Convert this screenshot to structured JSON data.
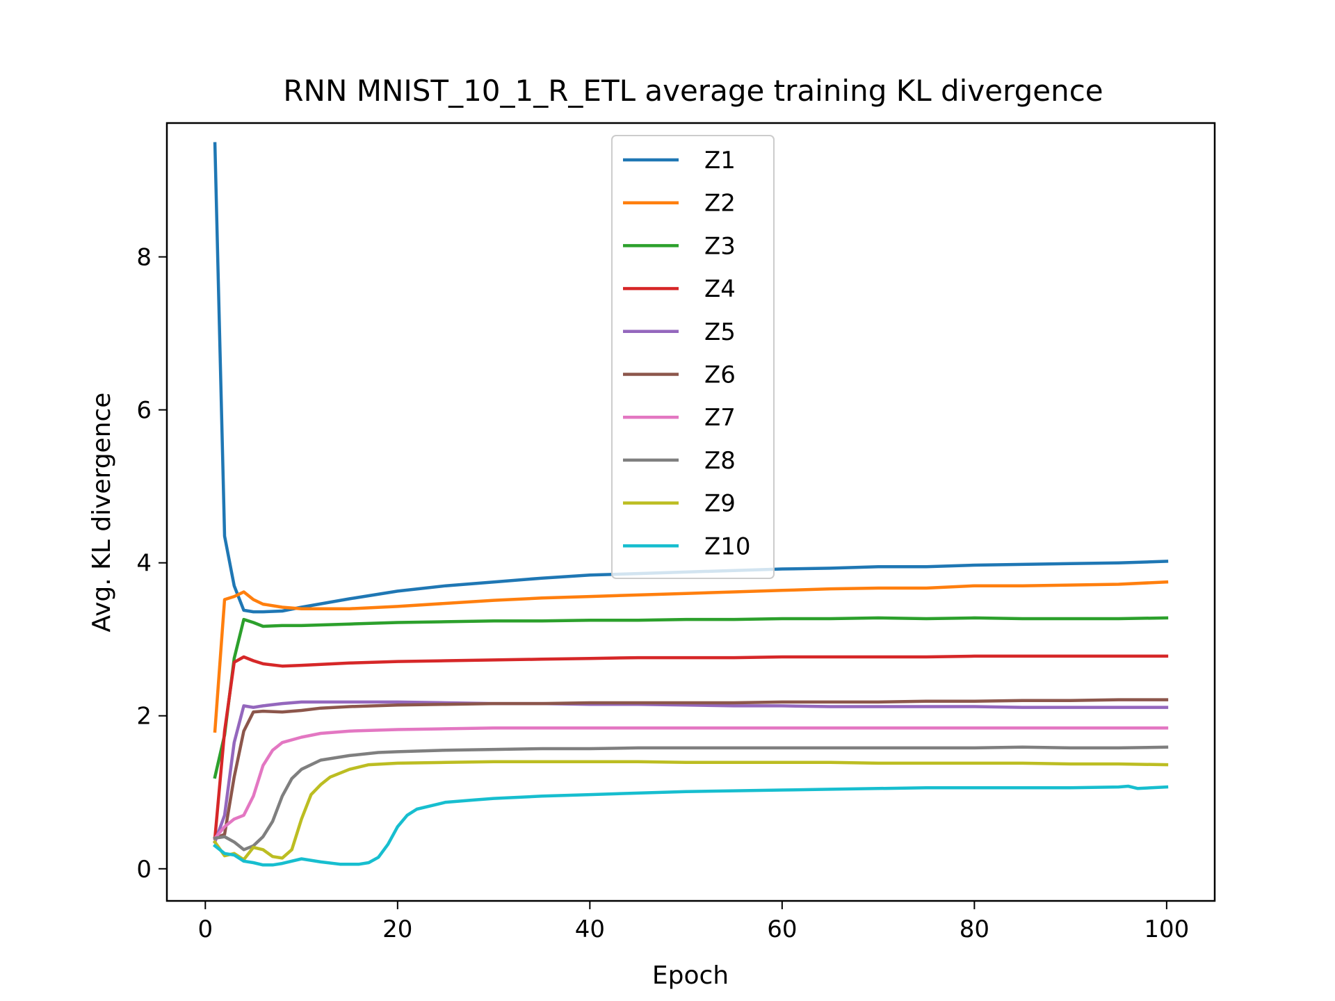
{
  "chart_data": {
    "type": "line",
    "title": "RNN MNIST_10_1_R_ETL average training KL divergence",
    "xlabel": "Epoch",
    "ylabel": "Avg. KL divergence",
    "xlim": [
      -4,
      105
    ],
    "ylim": [
      -0.42,
      9.75
    ],
    "xticks": [
      0,
      20,
      40,
      60,
      80,
      100
    ],
    "yticks": [
      0,
      2,
      4,
      6,
      8
    ],
    "grid": false,
    "legend_position": "upper center",
    "series": [
      {
        "name": "Z1",
        "color": "#1f77b4",
        "points": [
          [
            1,
            9.48
          ],
          [
            2,
            4.35
          ],
          [
            3,
            3.7
          ],
          [
            4,
            3.38
          ],
          [
            5,
            3.36
          ],
          [
            6,
            3.36
          ],
          [
            8,
            3.37
          ],
          [
            10,
            3.42
          ],
          [
            15,
            3.53
          ],
          [
            20,
            3.63
          ],
          [
            25,
            3.7
          ],
          [
            30,
            3.75
          ],
          [
            35,
            3.8
          ],
          [
            40,
            3.84
          ],
          [
            45,
            3.86
          ],
          [
            50,
            3.88
          ],
          [
            55,
            3.9
          ],
          [
            60,
            3.92
          ],
          [
            65,
            3.93
          ],
          [
            70,
            3.95
          ],
          [
            75,
            3.95
          ],
          [
            80,
            3.97
          ],
          [
            85,
            3.98
          ],
          [
            90,
            3.99
          ],
          [
            95,
            4.0
          ],
          [
            100,
            4.02
          ]
        ]
      },
      {
        "name": "Z2",
        "color": "#ff7f0e",
        "points": [
          [
            1,
            1.8
          ],
          [
            2,
            3.52
          ],
          [
            3,
            3.56
          ],
          [
            4,
            3.62
          ],
          [
            5,
            3.52
          ],
          [
            6,
            3.46
          ],
          [
            8,
            3.42
          ],
          [
            10,
            3.4
          ],
          [
            15,
            3.4
          ],
          [
            20,
            3.43
          ],
          [
            25,
            3.47
          ],
          [
            30,
            3.51
          ],
          [
            35,
            3.54
          ],
          [
            40,
            3.56
          ],
          [
            45,
            3.58
          ],
          [
            50,
            3.6
          ],
          [
            55,
            3.62
          ],
          [
            60,
            3.64
          ],
          [
            65,
            3.66
          ],
          [
            70,
            3.67
          ],
          [
            75,
            3.67
          ],
          [
            80,
            3.7
          ],
          [
            85,
            3.7
          ],
          [
            90,
            3.71
          ],
          [
            95,
            3.72
          ],
          [
            100,
            3.75
          ]
        ]
      },
      {
        "name": "Z3",
        "color": "#2ca02c",
        "points": [
          [
            1,
            1.2
          ],
          [
            2,
            1.75
          ],
          [
            3,
            2.75
          ],
          [
            4,
            3.26
          ],
          [
            5,
            3.22
          ],
          [
            6,
            3.17
          ],
          [
            8,
            3.18
          ],
          [
            10,
            3.18
          ],
          [
            15,
            3.2
          ],
          [
            20,
            3.22
          ],
          [
            25,
            3.23
          ],
          [
            30,
            3.24
          ],
          [
            35,
            3.24
          ],
          [
            40,
            3.25
          ],
          [
            45,
            3.25
          ],
          [
            50,
            3.26
          ],
          [
            55,
            3.26
          ],
          [
            60,
            3.27
          ],
          [
            65,
            3.27
          ],
          [
            70,
            3.28
          ],
          [
            75,
            3.27
          ],
          [
            80,
            3.28
          ],
          [
            85,
            3.27
          ],
          [
            90,
            3.27
          ],
          [
            95,
            3.27
          ],
          [
            100,
            3.28
          ]
        ]
      },
      {
        "name": "Z4",
        "color": "#d62728",
        "points": [
          [
            1,
            0.4
          ],
          [
            2,
            1.8
          ],
          [
            3,
            2.7
          ],
          [
            4,
            2.77
          ],
          [
            5,
            2.72
          ],
          [
            6,
            2.68
          ],
          [
            8,
            2.65
          ],
          [
            10,
            2.66
          ],
          [
            15,
            2.69
          ],
          [
            20,
            2.71
          ],
          [
            25,
            2.72
          ],
          [
            30,
            2.73
          ],
          [
            35,
            2.74
          ],
          [
            40,
            2.75
          ],
          [
            45,
            2.76
          ],
          [
            50,
            2.76
          ],
          [
            55,
            2.76
          ],
          [
            60,
            2.77
          ],
          [
            65,
            2.77
          ],
          [
            70,
            2.77
          ],
          [
            75,
            2.77
          ],
          [
            80,
            2.78
          ],
          [
            85,
            2.78
          ],
          [
            90,
            2.78
          ],
          [
            95,
            2.78
          ],
          [
            100,
            2.78
          ]
        ]
      },
      {
        "name": "Z5",
        "color": "#9467bd",
        "points": [
          [
            1,
            0.35
          ],
          [
            2,
            0.7
          ],
          [
            3,
            1.65
          ],
          [
            4,
            2.13
          ],
          [
            5,
            2.11
          ],
          [
            6,
            2.13
          ],
          [
            8,
            2.16
          ],
          [
            10,
            2.18
          ],
          [
            15,
            2.18
          ],
          [
            20,
            2.18
          ],
          [
            25,
            2.17
          ],
          [
            30,
            2.16
          ],
          [
            35,
            2.16
          ],
          [
            40,
            2.15
          ],
          [
            45,
            2.15
          ],
          [
            50,
            2.14
          ],
          [
            55,
            2.13
          ],
          [
            60,
            2.13
          ],
          [
            65,
            2.12
          ],
          [
            70,
            2.12
          ],
          [
            75,
            2.12
          ],
          [
            80,
            2.12
          ],
          [
            85,
            2.11
          ],
          [
            90,
            2.11
          ],
          [
            95,
            2.11
          ],
          [
            100,
            2.11
          ]
        ]
      },
      {
        "name": "Z6",
        "color": "#8c564b",
        "points": [
          [
            1,
            0.4
          ],
          [
            2,
            0.45
          ],
          [
            3,
            1.2
          ],
          [
            4,
            1.8
          ],
          [
            5,
            2.05
          ],
          [
            6,
            2.06
          ],
          [
            8,
            2.05
          ],
          [
            10,
            2.07
          ],
          [
            12,
            2.1
          ],
          [
            15,
            2.12
          ],
          [
            20,
            2.14
          ],
          [
            25,
            2.15
          ],
          [
            30,
            2.16
          ],
          [
            35,
            2.16
          ],
          [
            40,
            2.17
          ],
          [
            45,
            2.17
          ],
          [
            50,
            2.17
          ],
          [
            55,
            2.17
          ],
          [
            60,
            2.18
          ],
          [
            65,
            2.18
          ],
          [
            70,
            2.18
          ],
          [
            75,
            2.19
          ],
          [
            80,
            2.19
          ],
          [
            85,
            2.2
          ],
          [
            90,
            2.2
          ],
          [
            95,
            2.21
          ],
          [
            100,
            2.21
          ]
        ]
      },
      {
        "name": "Z7",
        "color": "#e377c2",
        "points": [
          [
            1,
            0.4
          ],
          [
            2,
            0.55
          ],
          [
            3,
            0.65
          ],
          [
            4,
            0.7
          ],
          [
            5,
            0.95
          ],
          [
            6,
            1.35
          ],
          [
            7,
            1.55
          ],
          [
            8,
            1.65
          ],
          [
            10,
            1.72
          ],
          [
            12,
            1.77
          ],
          [
            15,
            1.8
          ],
          [
            20,
            1.82
          ],
          [
            25,
            1.83
          ],
          [
            30,
            1.84
          ],
          [
            35,
            1.84
          ],
          [
            40,
            1.84
          ],
          [
            45,
            1.84
          ],
          [
            50,
            1.84
          ],
          [
            55,
            1.84
          ],
          [
            60,
            1.84
          ],
          [
            65,
            1.84
          ],
          [
            70,
            1.84
          ],
          [
            75,
            1.84
          ],
          [
            80,
            1.84
          ],
          [
            85,
            1.84
          ],
          [
            90,
            1.84
          ],
          [
            95,
            1.84
          ],
          [
            100,
            1.84
          ]
        ]
      },
      {
        "name": "Z8",
        "color": "#7f7f7f",
        "points": [
          [
            1,
            0.4
          ],
          [
            2,
            0.42
          ],
          [
            3,
            0.35
          ],
          [
            4,
            0.25
          ],
          [
            5,
            0.3
          ],
          [
            6,
            0.42
          ],
          [
            7,
            0.62
          ],
          [
            8,
            0.95
          ],
          [
            9,
            1.18
          ],
          [
            10,
            1.3
          ],
          [
            12,
            1.42
          ],
          [
            15,
            1.48
          ],
          [
            18,
            1.52
          ],
          [
            20,
            1.53
          ],
          [
            25,
            1.55
          ],
          [
            30,
            1.56
          ],
          [
            35,
            1.57
          ],
          [
            40,
            1.57
          ],
          [
            45,
            1.58
          ],
          [
            50,
            1.58
          ],
          [
            55,
            1.58
          ],
          [
            60,
            1.58
          ],
          [
            65,
            1.58
          ],
          [
            70,
            1.58
          ],
          [
            75,
            1.58
          ],
          [
            80,
            1.58
          ],
          [
            85,
            1.59
          ],
          [
            90,
            1.58
          ],
          [
            95,
            1.58
          ],
          [
            100,
            1.59
          ]
        ]
      },
      {
        "name": "Z9",
        "color": "#bcbd22",
        "points": [
          [
            1,
            0.35
          ],
          [
            2,
            0.17
          ],
          [
            3,
            0.2
          ],
          [
            4,
            0.12
          ],
          [
            5,
            0.28
          ],
          [
            6,
            0.25
          ],
          [
            7,
            0.16
          ],
          [
            8,
            0.14
          ],
          [
            9,
            0.25
          ],
          [
            10,
            0.65
          ],
          [
            11,
            0.97
          ],
          [
            12,
            1.1
          ],
          [
            13,
            1.2
          ],
          [
            15,
            1.3
          ],
          [
            17,
            1.36
          ],
          [
            20,
            1.38
          ],
          [
            25,
            1.39
          ],
          [
            30,
            1.4
          ],
          [
            35,
            1.4
          ],
          [
            40,
            1.4
          ],
          [
            45,
            1.4
          ],
          [
            50,
            1.39
          ],
          [
            55,
            1.39
          ],
          [
            60,
            1.39
          ],
          [
            65,
            1.39
          ],
          [
            70,
            1.38
          ],
          [
            75,
            1.38
          ],
          [
            80,
            1.38
          ],
          [
            85,
            1.38
          ],
          [
            90,
            1.37
          ],
          [
            95,
            1.37
          ],
          [
            100,
            1.36
          ]
        ]
      },
      {
        "name": "Z10",
        "color": "#17becf",
        "points": [
          [
            1,
            0.3
          ],
          [
            2,
            0.2
          ],
          [
            3,
            0.18
          ],
          [
            4,
            0.1
          ],
          [
            5,
            0.08
          ],
          [
            6,
            0.05
          ],
          [
            7,
            0.05
          ],
          [
            8,
            0.07
          ],
          [
            10,
            0.13
          ],
          [
            12,
            0.09
          ],
          [
            14,
            0.06
          ],
          [
            16,
            0.06
          ],
          [
            17,
            0.08
          ],
          [
            18,
            0.15
          ],
          [
            19,
            0.32
          ],
          [
            20,
            0.55
          ],
          [
            21,
            0.7
          ],
          [
            22,
            0.78
          ],
          [
            25,
            0.87
          ],
          [
            28,
            0.9
          ],
          [
            30,
            0.92
          ],
          [
            35,
            0.95
          ],
          [
            40,
            0.97
          ],
          [
            45,
            0.99
          ],
          [
            50,
            1.01
          ],
          [
            55,
            1.02
          ],
          [
            60,
            1.03
          ],
          [
            65,
            1.04
          ],
          [
            70,
            1.05
          ],
          [
            75,
            1.06
          ],
          [
            80,
            1.06
          ],
          [
            85,
            1.06
          ],
          [
            90,
            1.06
          ],
          [
            95,
            1.07
          ],
          [
            96,
            1.08
          ],
          [
            97,
            1.05
          ],
          [
            100,
            1.07
          ]
        ]
      }
    ]
  }
}
